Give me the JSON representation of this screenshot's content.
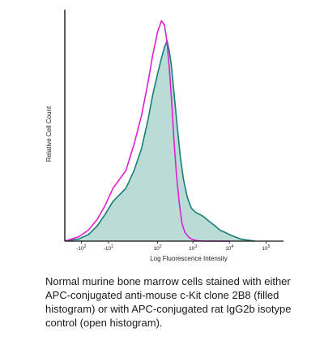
{
  "chart_data": {
    "type": "area",
    "ylabel": "Relative Cell Count",
    "xlabel": "Log Fluorescence Intensity",
    "x_scale": "log",
    "xlim": [
      -300,
      300000
    ],
    "ylim": [
      0,
      1.05
    ],
    "x_ticks": [
      {
        "value": -100,
        "base": "-10",
        "exp": "2"
      },
      {
        "value": -10,
        "base": "-10",
        "exp": "1"
      },
      {
        "value": 100,
        "base": "10",
        "exp": "2"
      },
      {
        "value": 1000,
        "base": "10",
        "exp": "3"
      },
      {
        "value": 10000,
        "base": "10",
        "exp": "4"
      },
      {
        "value": 100000,
        "base": "10",
        "exp": "5"
      }
    ],
    "series": [
      {
        "style": "filled",
        "fill": "#b9dcd7",
        "stroke": "#1a7e78",
        "x": [
          -300,
          -120,
          -60,
          -30,
          -15,
          -5,
          5,
          15,
          30,
          50,
          70,
          100,
          130,
          160,
          190,
          220,
          250,
          280,
          320,
          380,
          450,
          550,
          700,
          900,
          1200,
          1600,
          2000,
          2800,
          4000,
          5500,
          7500,
          10000,
          14000,
          20000,
          30000,
          50000
        ],
        "y": [
          0,
          0.01,
          0.03,
          0.07,
          0.12,
          0.18,
          0.24,
          0.32,
          0.42,
          0.55,
          0.66,
          0.76,
          0.83,
          0.88,
          0.91,
          0.86,
          0.8,
          0.72,
          0.62,
          0.5,
          0.38,
          0.28,
          0.2,
          0.15,
          0.13,
          0.12,
          0.11,
          0.09,
          0.07,
          0.05,
          0.04,
          0.03,
          0.02,
          0.01,
          0.005,
          0
        ]
      },
      {
        "style": "open",
        "stroke": "#e020d0",
        "x": [
          -300,
          -120,
          -60,
          -30,
          -15,
          -5,
          5,
          15,
          30,
          50,
          70,
          100,
          130,
          160,
          190,
          220,
          260,
          300,
          350,
          420,
          500,
          600,
          750,
          900,
          1100,
          1400,
          2000,
          3000,
          5000,
          10000
        ],
        "y": [
          0,
          0.02,
          0.05,
          0.1,
          0.16,
          0.24,
          0.32,
          0.44,
          0.57,
          0.72,
          0.84,
          0.95,
          1.0,
          0.98,
          0.9,
          0.78,
          0.62,
          0.45,
          0.3,
          0.17,
          0.08,
          0.04,
          0.02,
          0.01,
          0.005,
          0.002,
          0,
          0,
          0,
          0
        ]
      }
    ]
  },
  "caption": "Normal murine bone marrow cells stained with either APC-conjugated anti-mouse c-Kit clone 2B8 (filled histogram) or with APC-conjugated rat IgG2b isotype control (open histogram)."
}
